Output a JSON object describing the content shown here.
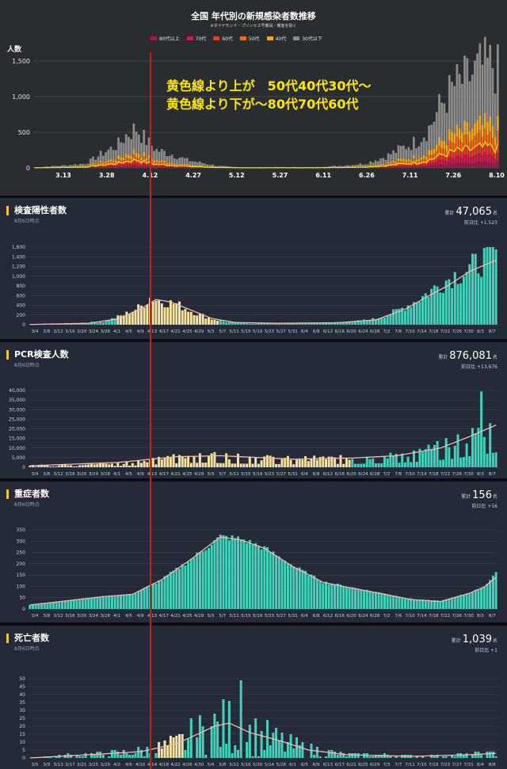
{
  "top_chart": {
    "title": "全国 年代別の新規感染者数推移",
    "note": "※ダイヤモンド・プリンセス号乗員・乗客を除く",
    "legend": [
      {
        "label": "80代以上",
        "color": "#9c1c4e"
      },
      {
        "label": "70代",
        "color": "#d3184a"
      },
      {
        "label": "60代",
        "color": "#e63b2a"
      },
      {
        "label": "50代",
        "color": "#f46d0c"
      },
      {
        "label": "40代",
        "color": "#f2a81d"
      },
      {
        "label": "30代以下",
        "color": "#8c8c8c"
      }
    ],
    "y_unit": "人数",
    "annotation_line1": "黄色線より上が　50代40代30代～",
    "annotation_line2": "黄色線より下が～80代70代60代"
  },
  "dashboard": {
    "positive": {
      "title": "検査陽性者数",
      "asof": "8月6日時点",
      "total_label": "累計",
      "total": "47,065",
      "unit": "名",
      "diff": "前日比 +1,523"
    },
    "pcr": {
      "title": "PCR検査人数",
      "asof": "8月6日時点",
      "total_label": "累計",
      "total": "876,081",
      "unit": "名",
      "diff": "前日比 +13,676"
    },
    "severe": {
      "title": "重症者数",
      "asof": "8月6日時点",
      "total_label": "累計",
      "total": "156",
      "unit": "名",
      "diff": "前日比 +16"
    },
    "deaths": {
      "title": "死亡者数",
      "asof": "8月6日時点",
      "total_label": "累計",
      "total": "1,039",
      "unit": "名",
      "diff": "前日比 +1"
    }
  },
  "colors": {
    "accent": "#f2c230",
    "teal": "#3fd3bb",
    "cream": "#f5e3a0",
    "avg_line": "#f0b8b0",
    "red_marker": "#c8201d",
    "yellow_line": "#ffe000"
  },
  "chart_data": [
    {
      "id": "age_new_cases",
      "type": "bar",
      "stacked": true,
      "ylabel": "人数",
      "ylim": [
        0,
        1600
      ],
      "yticks": [
        0,
        500,
        1000,
        1500
      ],
      "xticks": [
        "3.13",
        "3.28",
        "4.12",
        "4.27",
        "5.12",
        "5.27",
        "6.11",
        "6.26",
        "7.11",
        "7.26",
        "8.10"
      ],
      "x_start": "3.1",
      "series_names": [
        "80代以上",
        "70代",
        "60代",
        "50代",
        "40代",
        "30代以下"
      ],
      "keypoints": [
        [
          0,
          8
        ],
        [
          10,
          30
        ],
        [
          20,
          60
        ],
        [
          27,
          210
        ],
        [
          33,
          330
        ],
        [
          36,
          460
        ],
        [
          40,
          560
        ],
        [
          44,
          380
        ],
        [
          48,
          250
        ],
        [
          54,
          190
        ],
        [
          60,
          110
        ],
        [
          66,
          70
        ],
        [
          72,
          30
        ],
        [
          78,
          12
        ],
        [
          84,
          8
        ],
        [
          95,
          10
        ],
        [
          110,
          10
        ],
        [
          120,
          30
        ],
        [
          130,
          60
        ],
        [
          138,
          160
        ],
        [
          145,
          290
        ],
        [
          150,
          370
        ],
        [
          155,
          560
        ],
        [
          160,
          900
        ],
        [
          165,
          1150
        ],
        [
          170,
          1250
        ],
        [
          175,
          1400
        ],
        [
          180,
          1450
        ],
        [
          182,
          1350
        ]
      ],
      "annotation_line": "yellow line = 60代以上 cumulative boundary"
    },
    {
      "id": "positive",
      "type": "bar",
      "ylim": [
        0,
        1600
      ],
      "yticks": [
        0,
        200,
        400,
        600,
        800,
        1000,
        1200,
        1400,
        1600
      ],
      "xticks": [
        "3/4",
        "3/8",
        "3/12",
        "3/16",
        "3/20",
        "3/24",
        "3/28",
        "4/1",
        "4/5",
        "4/9",
        "4/13",
        "4/17",
        "4/21",
        "4/25",
        "4/29",
        "5/3",
        "5/7",
        "5/11",
        "5/15",
        "5/19",
        "5/23",
        "5/27",
        "5/31",
        "6/4",
        "6/8",
        "6/12",
        "6/16",
        "6/20",
        "6/24",
        "6/28",
        "7/2",
        "7/6",
        "7/10",
        "7/14",
        "7/18",
        "7/22",
        "7/26",
        "7/30",
        "8/3",
        "8/7"
      ],
      "x_start": "3/1",
      "keypoints": [
        [
          0,
          8
        ],
        [
          15,
          30
        ],
        [
          25,
          60
        ],
        [
          32,
          200
        ],
        [
          38,
          380
        ],
        [
          41,
          560
        ],
        [
          45,
          480
        ],
        [
          50,
          430
        ],
        [
          55,
          280
        ],
        [
          62,
          120
        ],
        [
          68,
          50
        ],
        [
          75,
          25
        ],
        [
          85,
          30
        ],
        [
          100,
          40
        ],
        [
          110,
          60
        ],
        [
          118,
          120
        ],
        [
          125,
          280
        ],
        [
          132,
          500
        ],
        [
          138,
          750
        ],
        [
          144,
          1000
        ],
        [
          150,
          1150
        ],
        [
          155,
          1350
        ],
        [
          159,
          1500
        ]
      ],
      "avg_keypoints": [
        [
          0,
          5
        ],
        [
          20,
          30
        ],
        [
          30,
          120
        ],
        [
          38,
          330
        ],
        [
          43,
          520
        ],
        [
          48,
          470
        ],
        [
          55,
          300
        ],
        [
          62,
          130
        ],
        [
          70,
          45
        ],
        [
          85,
          30
        ],
        [
          105,
          40
        ],
        [
          118,
          100
        ],
        [
          128,
          320
        ],
        [
          135,
          560
        ],
        [
          143,
          820
        ],
        [
          150,
          1100
        ],
        [
          159,
          1330
        ]
      ]
    },
    {
      "id": "pcr",
      "type": "bar",
      "ylim": [
        0,
        40000
      ],
      "yticks": [
        0,
        5000,
        10000,
        15000,
        20000,
        25000,
        30000,
        35000,
        40000
      ],
      "xticks": [
        "3/4",
        "3/8",
        "3/12",
        "3/16",
        "3/20",
        "3/24",
        "3/28",
        "4/1",
        "4/5",
        "4/9",
        "4/13",
        "4/17",
        "4/21",
        "4/25",
        "4/29",
        "5/3",
        "5/7",
        "5/11",
        "5/15",
        "5/19",
        "5/23",
        "5/27",
        "5/31",
        "6/4",
        "6/8",
        "6/12",
        "6/16",
        "6/20",
        "6/24",
        "6/28",
        "7/2",
        "7/6",
        "7/10",
        "7/14",
        "7/18",
        "7/22",
        "7/26",
        "7/30",
        "8/3",
        "8/7"
      ],
      "x_start": "3/1",
      "keypoints": [
        [
          0,
          1000
        ],
        [
          20,
          1500
        ],
        [
          35,
          2500
        ],
        [
          50,
          6000
        ],
        [
          60,
          7000
        ],
        [
          70,
          5500
        ],
        [
          90,
          4500
        ],
        [
          110,
          5000
        ],
        [
          125,
          6500
        ],
        [
          135,
          9000
        ],
        [
          145,
          13000
        ],
        [
          152,
          18000
        ],
        [
          159,
          22000
        ]
      ],
      "avg_keypoints": [
        [
          0,
          800
        ],
        [
          30,
          2500
        ],
        [
          50,
          5500
        ],
        [
          65,
          6000
        ],
        [
          90,
          4200
        ],
        [
          110,
          4800
        ],
        [
          125,
          6000
        ],
        [
          140,
          10000
        ],
        [
          150,
          16000
        ],
        [
          159,
          22000
        ]
      ]
    },
    {
      "id": "severe",
      "type": "bar",
      "ylim": [
        0,
        350
      ],
      "yticks": [
        0,
        50,
        100,
        150,
        200,
        250,
        300,
        350
      ],
      "xticks": [
        "3/4",
        "3/8",
        "3/12",
        "3/16",
        "3/20",
        "3/24",
        "3/28",
        "4/1",
        "4/5",
        "4/9",
        "4/13",
        "4/17",
        "4/21",
        "4/25",
        "4/29",
        "5/3",
        "5/7",
        "5/11",
        "5/15",
        "5/19",
        "5/23",
        "5/27",
        "5/31",
        "6/4",
        "6/8",
        "6/12",
        "6/16",
        "6/20",
        "6/24",
        "6/28",
        "7/2",
        "7/6",
        "7/10",
        "7/14",
        "7/18",
        "7/22",
        "7/26",
        "7/30",
        "8/3",
        "8/7"
      ],
      "x_start": "3/1",
      "keypoints": [
        [
          0,
          18
        ],
        [
          15,
          40
        ],
        [
          25,
          55
        ],
        [
          35,
          65
        ],
        [
          45,
          130
        ],
        [
          55,
          220
        ],
        [
          62,
          290
        ],
        [
          65,
          320
        ],
        [
          72,
          310
        ],
        [
          80,
          270
        ],
        [
          90,
          190
        ],
        [
          100,
          120
        ],
        [
          110,
          95
        ],
        [
          120,
          70
        ],
        [
          130,
          45
        ],
        [
          140,
          35
        ],
        [
          150,
          70
        ],
        [
          155,
          100
        ],
        [
          159,
          156
        ]
      ],
      "avg_keypoints": [
        [
          0,
          18
        ],
        [
          15,
          40
        ],
        [
          25,
          55
        ],
        [
          35,
          65
        ],
        [
          45,
          130
        ],
        [
          55,
          220
        ],
        [
          62,
          290
        ],
        [
          65,
          318
        ],
        [
          72,
          305
        ],
        [
          80,
          268
        ],
        [
          90,
          185
        ],
        [
          100,
          118
        ],
        [
          110,
          92
        ],
        [
          120,
          68
        ],
        [
          130,
          42
        ],
        [
          140,
          33
        ],
        [
          150,
          70
        ],
        [
          155,
          98
        ],
        [
          159,
          140
        ]
      ]
    },
    {
      "id": "deaths",
      "type": "bar",
      "ylim": [
        0,
        50
      ],
      "yticks": [
        0,
        5,
        10,
        15,
        20,
        25,
        30,
        35,
        40,
        45,
        50
      ],
      "xticks": [
        "3/5",
        "3/9",
        "3/13",
        "3/17",
        "3/21",
        "3/25",
        "3/29",
        "4/2",
        "4/6",
        "4/10",
        "4/14",
        "4/18",
        "4/22",
        "4/26",
        "4/30",
        "5/4",
        "5/8",
        "5/12",
        "5/16",
        "5/20",
        "5/24",
        "5/28",
        "6/1",
        "6/5",
        "6/9",
        "6/13",
        "6/17",
        "6/21",
        "6/25",
        "6/29",
        "7/3",
        "7/7",
        "7/11",
        "7/15",
        "7/19",
        "7/23",
        "7/27",
        "7/31",
        "8/4",
        "8/8"
      ],
      "x_start": "3/1",
      "keypoints": [
        [
          0,
          0
        ],
        [
          15,
          2
        ],
        [
          30,
          3
        ],
        [
          40,
          5
        ],
        [
          50,
          9
        ],
        [
          56,
          15
        ],
        [
          63,
          20
        ],
        [
          68,
          22
        ],
        [
          72,
          18
        ],
        [
          80,
          14
        ],
        [
          90,
          8
        ],
        [
          100,
          4
        ],
        [
          110,
          2
        ],
        [
          120,
          2
        ],
        [
          135,
          1
        ],
        [
          150,
          2
        ],
        [
          160,
          3
        ]
      ],
      "avg_keypoints": [
        [
          0,
          0
        ],
        [
          20,
          2
        ],
        [
          38,
          4
        ],
        [
          50,
          9
        ],
        [
          56,
          14
        ],
        [
          63,
          20
        ],
        [
          68,
          22
        ],
        [
          75,
          16
        ],
        [
          85,
          11
        ],
        [
          95,
          5
        ],
        [
          108,
          2
        ],
        [
          130,
          1
        ],
        [
          150,
          2
        ],
        [
          160,
          3
        ]
      ]
    }
  ]
}
